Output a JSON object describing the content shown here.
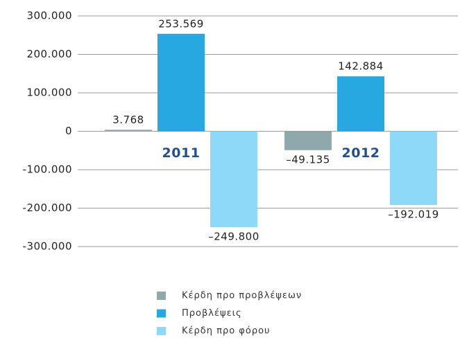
{
  "chart_data": {
    "type": "bar",
    "categories": [
      "2011",
      "2012"
    ],
    "series": [
      {
        "name": "Κέρδη προ προβλέψεων",
        "color": "#8ea8ab",
        "values": [
          3768,
          -49135
        ],
        "value_labels": [
          "3.768",
          "–49.135"
        ]
      },
      {
        "name": "Προβλέψεις",
        "color": "#27a8e0",
        "values": [
          253569,
          142884
        ],
        "value_labels": [
          "253.569",
          "142.884"
        ]
      },
      {
        "name": "Κέρδη προ φόρου",
        "color": "#8ed8f8",
        "values": [
          -249800,
          -192019
        ],
        "value_labels": [
          "–249.800",
          "–192.019"
        ]
      }
    ],
    "ylim": [
      -300000,
      300000
    ],
    "yticks": [
      {
        "value": 300000,
        "label": "300.000"
      },
      {
        "value": 200000,
        "label": "200.000"
      },
      {
        "value": 100000,
        "label": "100.000"
      },
      0,
      {
        "value": -100000,
        "label": "-100.000"
      },
      {
        "value": -200000,
        "label": "-200.000"
      },
      {
        "value": -300000,
        "label": "-300.000"
      }
    ],
    "grid": true
  }
}
